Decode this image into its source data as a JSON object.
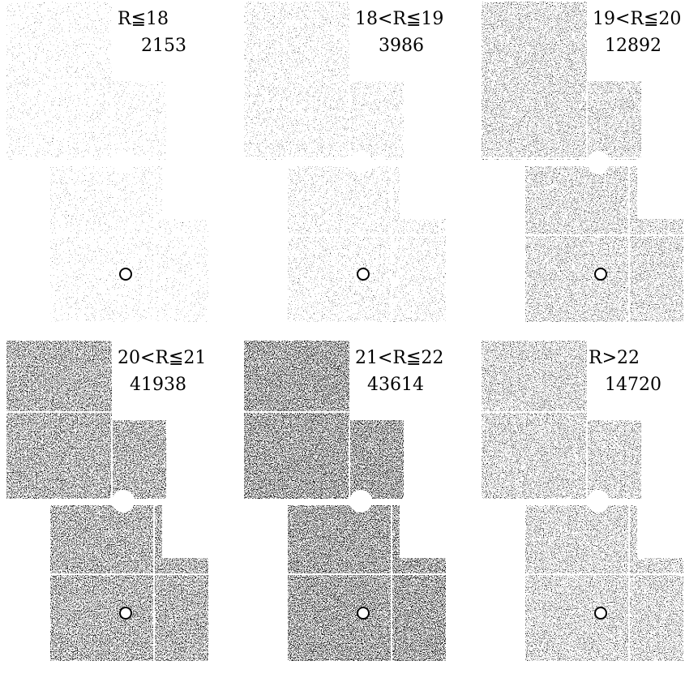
{
  "panels": [
    {
      "label": "R≦18",
      "count": "2153"
    },
    {
      "label": "18<R≦19",
      "count": "3986"
    },
    {
      "label": "19<R≦20",
      "count": "12892"
    },
    {
      "label": "20<R≦21",
      "count": "41938"
    },
    {
      "label": "21<R≦22",
      "count": "43614"
    },
    {
      "label": "R>22",
      "count": "14720"
    }
  ]
}
